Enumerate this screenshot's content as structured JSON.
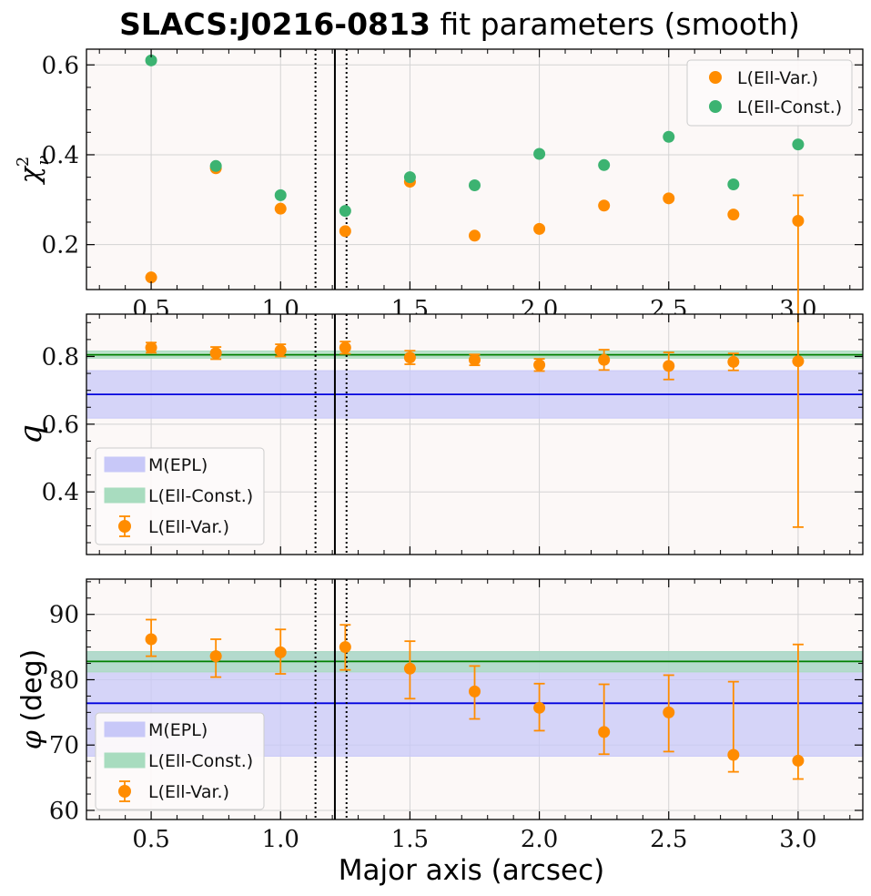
{
  "figure": {
    "title_bold": "SLACS:J0216-0813",
    "title_rest": " fit parameters (smooth)",
    "xlabel": "Major axis (arcsec)",
    "colors": {
      "ell_var": "#ff8c00",
      "ell_const": "#3cb371",
      "epl": "#0000dd",
      "epl_fill": "#c8c8f8",
      "const_fill": "#a8dcbf",
      "background": "#fcf8f7",
      "grid": "#d3d3d3"
    }
  },
  "chart_data": [
    {
      "id": "chi2",
      "type": "scatter",
      "ylabel": "χ²ᵥ",
      "ylabel_main": "χ",
      "ylabel_sup": "2",
      "ylabel_sub": "ν",
      "xlim": [
        0.25,
        3.25
      ],
      "ylim": [
        0.1,
        0.635
      ],
      "xticks": [
        0.5,
        1.0,
        1.5,
        2.0,
        2.5,
        3.0
      ],
      "xtick_labels": [
        "0.5",
        "1.0",
        "1.5",
        "2.0",
        "2.5",
        "3.0"
      ],
      "yticks": [
        0.2,
        0.4,
        0.6
      ],
      "ytick_labels": [
        "0.2",
        "0.4",
        "0.6"
      ],
      "vlines": {
        "solid": 1.21,
        "dotted": [
          1.135,
          1.255
        ]
      },
      "legend_position": "top-right",
      "legend": [
        "L(Ell-Var.)",
        "L(Ell-Const.)"
      ],
      "series": [
        {
          "name": "L(Ell-Var.)",
          "color": "#ff8c00",
          "x": [
            0.5,
            0.75,
            1.0,
            1.25,
            1.5,
            1.75,
            2.0,
            2.25,
            2.5,
            2.75,
            3.0
          ],
          "y": [
            0.127,
            0.37,
            0.28,
            0.23,
            0.34,
            0.22,
            0.235,
            0.287,
            0.303,
            0.267,
            0.253
          ]
        },
        {
          "name": "L(Ell-Const.)",
          "color": "#3cb371",
          "x": [
            0.5,
            0.75,
            1.0,
            1.25,
            1.5,
            1.75,
            2.0,
            2.25,
            2.5,
            2.75,
            3.0
          ],
          "y": [
            0.61,
            0.375,
            0.31,
            0.275,
            0.35,
            0.332,
            0.402,
            0.377,
            0.44,
            0.334,
            0.423
          ]
        }
      ]
    },
    {
      "id": "q",
      "type": "scatter",
      "ylabel": "q",
      "xlim": [
        0.25,
        3.25
      ],
      "ylim": [
        0.215,
        0.925
      ],
      "xticks": [
        0.5,
        1.0,
        1.5,
        2.0,
        2.5,
        3.0
      ],
      "yticks": [
        0.4,
        0.6,
        0.8
      ],
      "ytick_labels": [
        "0.4",
        "0.6",
        "0.8"
      ],
      "vlines": {
        "solid": 1.21,
        "dotted": [
          1.135,
          1.255
        ]
      },
      "legend_position": "lower-left",
      "legend": [
        "M(EPL)",
        "L(Ell-Const.)",
        "L(Ell-Var.)"
      ],
      "bands": [
        {
          "name": "M(EPL)",
          "center": 0.688,
          "low": 0.618,
          "high": 0.758,
          "line_color": "#0000dd",
          "fill": "#c8c8f8"
        },
        {
          "name": "L(Ell-Const.)",
          "center": 0.805,
          "low": 0.795,
          "high": 0.816,
          "line_color": "#007f00",
          "fill": "#a8dcbf"
        }
      ],
      "series": [
        {
          "name": "L(Ell-Var.)",
          "color": "#ff8c00",
          "x": [
            0.5,
            0.75,
            1.0,
            1.25,
            1.5,
            1.75,
            2.0,
            2.25,
            2.5,
            2.75,
            3.0
          ],
          "y": [
            0.826,
            0.81,
            0.818,
            0.826,
            0.797,
            0.79,
            0.775,
            0.79,
            0.772,
            0.784,
            0.786
          ],
          "yerr": [
            0.015,
            0.018,
            0.018,
            0.018,
            0.02,
            0.016,
            0.018,
            0.03,
            0.04,
            0.025,
            0.49
          ]
        }
      ]
    },
    {
      "id": "phi",
      "type": "scatter",
      "ylabel": "φ (deg)",
      "ylabel_main": "φ",
      "ylabel_unit": " (deg)",
      "xlim": [
        0.25,
        3.25
      ],
      "ylim": [
        58.6,
        95.4
      ],
      "xticks": [
        0.5,
        1.0,
        1.5,
        2.0,
        2.5,
        3.0
      ],
      "xtick_labels": [
        "0.5",
        "1.0",
        "1.5",
        "2.0",
        "2.5",
        "3.0"
      ],
      "yticks": [
        60,
        70,
        80,
        90
      ],
      "ytick_labels": [
        "60",
        "70",
        "80",
        "90"
      ],
      "vlines": {
        "solid": 1.21,
        "dotted": [
          1.135,
          1.255
        ]
      },
      "legend_position": "lower-left",
      "legend": [
        "M(EPL)",
        "L(Ell-Const.)",
        "L(Ell-Var.)"
      ],
      "bands": [
        {
          "name": "M(EPL)",
          "center": 76.4,
          "low": 68.3,
          "high": 84.3,
          "line_color": "#0000dd",
          "fill": "#c8c8f8"
        },
        {
          "name": "L(Ell-Const.)",
          "center": 82.8,
          "low": 81.2,
          "high": 84.3,
          "line_color": "#007f00",
          "fill": "#a8dcbf"
        }
      ],
      "series": [
        {
          "name": "L(Ell-Var.)",
          "color": "#ff8c00",
          "x": [
            0.5,
            0.75,
            1.0,
            1.25,
            1.5,
            1.75,
            2.0,
            2.25,
            2.5,
            2.75,
            3.0
          ],
          "y": [
            86.2,
            83.6,
            84.2,
            85.0,
            81.7,
            78.2,
            75.7,
            72.0,
            75.0,
            68.5,
            67.6
          ],
          "yerr_low": [
            2.6,
            3.2,
            3.3,
            3.5,
            4.6,
            4.2,
            3.5,
            3.4,
            6.0,
            2.6,
            2.8
          ],
          "yerr_high": [
            3.0,
            2.6,
            3.5,
            3.4,
            4.2,
            3.9,
            3.7,
            7.3,
            5.7,
            11.2,
            17.8
          ]
        }
      ]
    }
  ]
}
